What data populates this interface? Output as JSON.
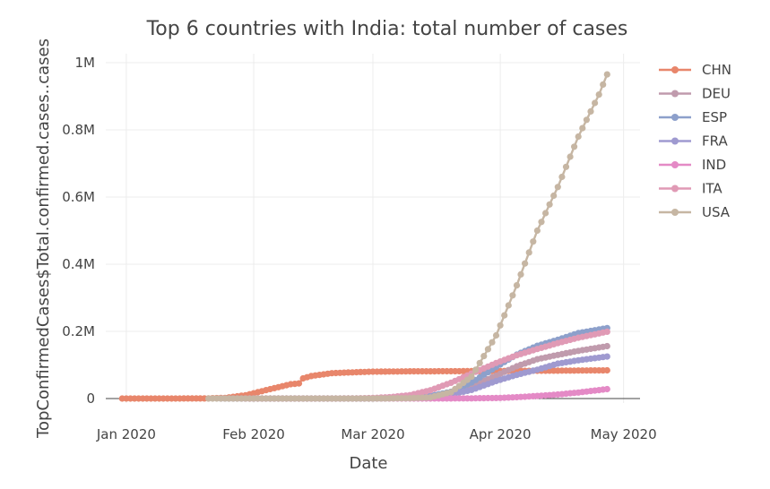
{
  "chart_data": {
    "type": "line",
    "title": "Top 6 countries with India: total number of cases",
    "xlabel": "Date",
    "ylabel": "TopConfirmedCases$Total.confirmed.cases..cases",
    "x_range": [
      "2019-12-27",
      "2020-05-05"
    ],
    "ylim": [
      0,
      1000000
    ],
    "x_ticks": [
      {
        "date": "2020-01-01",
        "label": "Jan 2020"
      },
      {
        "date": "2020-02-01",
        "label": "Feb 2020"
      },
      {
        "date": "2020-03-01",
        "label": "Mar 2020"
      },
      {
        "date": "2020-04-01",
        "label": "Apr 2020"
      },
      {
        "date": "2020-05-01",
        "label": "May 2020"
      }
    ],
    "y_ticks": [
      {
        "value": 0,
        "label": "0"
      },
      {
        "value": 200000,
        "label": "0.2M"
      },
      {
        "value": 400000,
        "label": "0.4M"
      },
      {
        "value": 600000,
        "label": "0.6M"
      },
      {
        "value": 800000,
        "label": "0.8M"
      },
      {
        "value": 1000000,
        "label": "1M"
      }
    ],
    "grid": true,
    "legend_position": "right",
    "marker": "circle",
    "series": [
      {
        "name": "CHN",
        "color": "#e8866b",
        "points": [
          [
            "2019-12-31",
            0
          ],
          [
            "2020-01-10",
            0
          ],
          [
            "2020-01-20",
            300
          ],
          [
            "2020-01-25",
            2000
          ],
          [
            "2020-01-30",
            9700
          ],
          [
            "2020-02-05",
            28000
          ],
          [
            "2020-02-10",
            42600
          ],
          [
            "2020-02-12",
            45000
          ],
          [
            "2020-02-13",
            60000
          ],
          [
            "2020-02-15",
            67000
          ],
          [
            "2020-02-20",
            75500
          ],
          [
            "2020-02-25",
            78000
          ],
          [
            "2020-03-01",
            80000
          ],
          [
            "2020-03-10",
            81000
          ],
          [
            "2020-03-20",
            81300
          ],
          [
            "2020-04-01",
            82000
          ],
          [
            "2020-04-15",
            83000
          ],
          [
            "2020-04-27",
            83900
          ]
        ]
      },
      {
        "name": "DEU",
        "color": "#c09bad",
        "points": [
          [
            "2020-01-27",
            0
          ],
          [
            "2020-02-20",
            16
          ],
          [
            "2020-03-01",
            130
          ],
          [
            "2020-03-10",
            1500
          ],
          [
            "2020-03-15",
            5800
          ],
          [
            "2020-03-20",
            20000
          ],
          [
            "2020-03-25",
            37000
          ],
          [
            "2020-03-31",
            68000
          ],
          [
            "2020-04-05",
            96000
          ],
          [
            "2020-04-10",
            117000
          ],
          [
            "2020-04-15",
            130000
          ],
          [
            "2020-04-20",
            142000
          ],
          [
            "2020-04-27",
            156000
          ]
        ]
      },
      {
        "name": "ESP",
        "color": "#8da0cb",
        "points": [
          [
            "2020-02-01",
            0
          ],
          [
            "2020-03-01",
            80
          ],
          [
            "2020-03-10",
            1700
          ],
          [
            "2020-03-15",
            7800
          ],
          [
            "2020-03-20",
            20000
          ],
          [
            "2020-03-25",
            47600
          ],
          [
            "2020-03-31",
            94000
          ],
          [
            "2020-04-05",
            130700
          ],
          [
            "2020-04-10",
            157000
          ],
          [
            "2020-04-15",
            175000
          ],
          [
            "2020-04-20",
            195000
          ],
          [
            "2020-04-27",
            210000
          ]
        ]
      },
      {
        "name": "FRA",
        "color": "#9f9ad0",
        "points": [
          [
            "2020-01-24",
            0
          ],
          [
            "2020-03-01",
            130
          ],
          [
            "2020-03-10",
            1800
          ],
          [
            "2020-03-15",
            5400
          ],
          [
            "2020-03-20",
            12600
          ],
          [
            "2020-03-25",
            25600
          ],
          [
            "2020-03-31",
            52000
          ],
          [
            "2020-04-05",
            70500
          ],
          [
            "2020-04-10",
            86000
          ],
          [
            "2020-04-15",
            104000
          ],
          [
            "2020-04-20",
            114000
          ],
          [
            "2020-04-27",
            125000
          ]
        ]
      },
      {
        "name": "IND",
        "color": "#e48ac6",
        "points": [
          [
            "2020-01-30",
            0
          ],
          [
            "2020-03-01",
            3
          ],
          [
            "2020-03-15",
            107
          ],
          [
            "2020-03-25",
            600
          ],
          [
            "2020-04-01",
            1800
          ],
          [
            "2020-04-05",
            4000
          ],
          [
            "2020-04-10",
            7600
          ],
          [
            "2020-04-15",
            12000
          ],
          [
            "2020-04-20",
            18000
          ],
          [
            "2020-04-27",
            28000
          ]
        ]
      },
      {
        "name": "ITA",
        "color": "#e09ab5",
        "points": [
          [
            "2020-01-31",
            0
          ],
          [
            "2020-02-20",
            3
          ],
          [
            "2020-02-25",
            320
          ],
          [
            "2020-03-01",
            1700
          ],
          [
            "2020-03-05",
            3900
          ],
          [
            "2020-03-10",
            10100
          ],
          [
            "2020-03-15",
            24700
          ],
          [
            "2020-03-20",
            47000
          ],
          [
            "2020-03-25",
            74400
          ],
          [
            "2020-03-31",
            105800
          ],
          [
            "2020-04-05",
            128900
          ],
          [
            "2020-04-10",
            147500
          ],
          [
            "2020-04-15",
            165000
          ],
          [
            "2020-04-20",
            181000
          ],
          [
            "2020-04-27",
            199000
          ]
        ]
      },
      {
        "name": "USA",
        "color": "#c6b6a3",
        "points": [
          [
            "2020-01-21",
            0
          ],
          [
            "2020-03-01",
            70
          ],
          [
            "2020-03-10",
            1000
          ],
          [
            "2020-03-15",
            3500
          ],
          [
            "2020-03-20",
            19000
          ],
          [
            "2020-03-25",
            65000
          ],
          [
            "2020-03-31",
            188000
          ],
          [
            "2020-04-05",
            337000
          ],
          [
            "2020-04-10",
            500000
          ],
          [
            "2020-04-15",
            630000
          ],
          [
            "2020-04-20",
            780000
          ],
          [
            "2020-04-25",
            905000
          ],
          [
            "2020-04-27",
            965000
          ]
        ]
      }
    ]
  }
}
